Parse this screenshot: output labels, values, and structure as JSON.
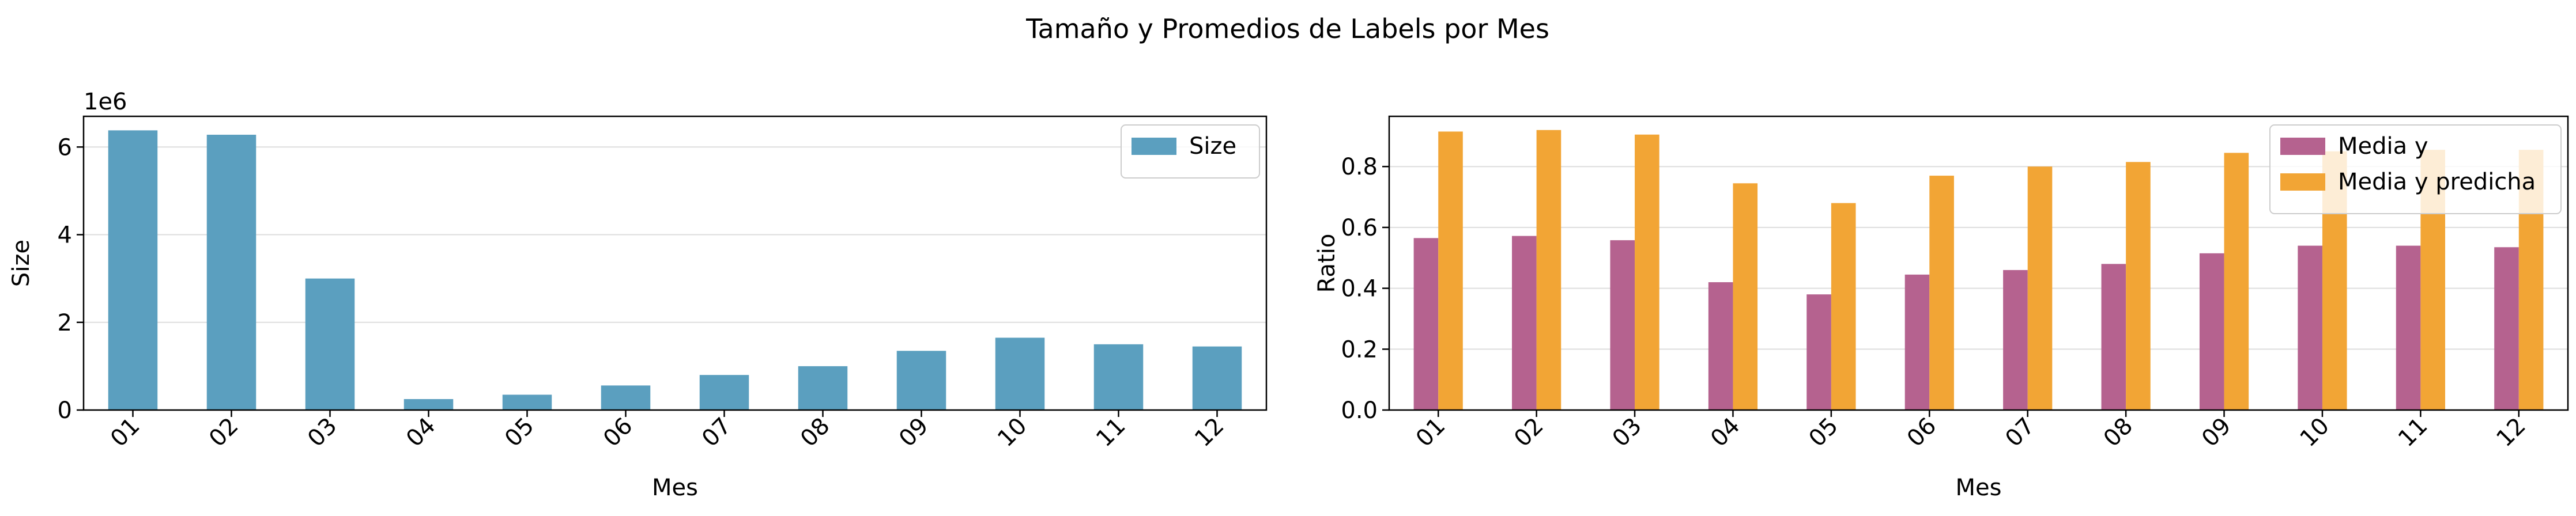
{
  "suptitle": "Tamaño y Promedios de Labels por Mes",
  "chart_data": [
    {
      "type": "bar",
      "categories": [
        "01",
        "02",
        "03",
        "04",
        "05",
        "06",
        "07",
        "08",
        "09",
        "10",
        "11",
        "12"
      ],
      "series": [
        {
          "name": "Size",
          "color": "#5b9fbf",
          "values": [
            6380000,
            6280000,
            3000000,
            250000,
            350000,
            560000,
            800000,
            1000000,
            1350000,
            1650000,
            1500000,
            1450000
          ]
        }
      ],
      "xlabel": "Mes",
      "ylabel": "Size",
      "offset_label": "1e6",
      "ylim": [
        0,
        6700000
      ],
      "yticks": [
        0,
        2000000,
        4000000,
        6000000
      ],
      "ytick_labels": [
        "0",
        "2",
        "4",
        "6"
      ],
      "grid": "horizontal",
      "legend": "top-right"
    },
    {
      "type": "bar",
      "categories": [
        "01",
        "02",
        "03",
        "04",
        "05",
        "06",
        "07",
        "08",
        "09",
        "10",
        "11",
        "12"
      ],
      "series": [
        {
          "name": "Media y",
          "color": "#b5628f",
          "values": [
            0.565,
            0.572,
            0.558,
            0.42,
            0.38,
            0.445,
            0.46,
            0.48,
            0.515,
            0.54,
            0.54,
            0.535
          ]
        },
        {
          "name": "Media y predicha",
          "color": "#f2a535",
          "values": [
            0.915,
            0.92,
            0.905,
            0.745,
            0.68,
            0.77,
            0.8,
            0.815,
            0.845,
            0.85,
            0.855,
            0.855
          ]
        }
      ],
      "xlabel": "Mes",
      "ylabel": "Ratio",
      "ylim": [
        0,
        0.965
      ],
      "yticks": [
        0,
        0.2,
        0.4,
        0.6,
        0.8
      ],
      "ytick_labels": [
        "0.0",
        "0.2",
        "0.4",
        "0.6",
        "0.8"
      ],
      "grid": "horizontal",
      "legend": "top-right"
    }
  ]
}
